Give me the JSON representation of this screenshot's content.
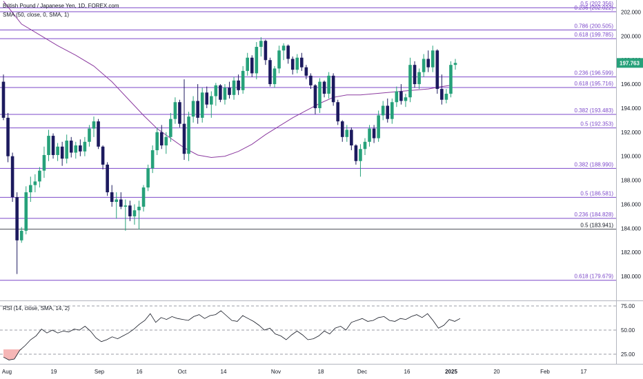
{
  "chart_data": {
    "type": "candlestick",
    "title": "British Pound / Japanese Yen, 1D, FOREX.com",
    "indicator_sma": "SMA (50, close, 0, SMA, 1)",
    "indicator_rsi": "RSI (14, close, SMA, 14, 2)",
    "last_price": "197.763",
    "colors": {
      "up": "#26a17a",
      "down": "#1c1a5e",
      "sma": "#8b3a9f",
      "rsi": "#131722",
      "fib": "#7b47c9",
      "last_price_bg": "#26a17a",
      "oversold_fill": "#f5b6b6"
    },
    "price_axis": {
      "min": 178,
      "max": 203,
      "ticks": [
        "202.000",
        "200.000",
        "198.000",
        "196.000",
        "194.000",
        "192.000",
        "190.000",
        "188.000",
        "186.000",
        "184.000",
        "182.000",
        "180.000"
      ]
    },
    "time_axis": {
      "labels": [
        "Aug",
        "19",
        "Sep",
        "16",
        "Oct",
        "14",
        "Nov",
        "18",
        "Dec",
        "16",
        "2025",
        "20",
        "Feb",
        "17"
      ]
    },
    "levels": [
      {
        "label": "0.5 (202.356)",
        "value": 202.356
      },
      {
        "label": "0.236 (202.022)",
        "value": 202.022
      },
      {
        "label": "0.786 (200.505)",
        "value": 200.505
      },
      {
        "label": "0.618 (199.785)",
        "value": 199.785
      },
      {
        "label": "0.236 (196.599)",
        "value": 196.599
      },
      {
        "label": "0.618 (195.716)",
        "value": 195.716
      },
      {
        "label": "0.382 (193.483)",
        "value": 193.483
      },
      {
        "label": "0.5 (192.353)",
        "value": 192.353
      },
      {
        "label": "0.382 (188.990)",
        "value": 188.99
      },
      {
        "label": "0.5 (186.581)",
        "value": 186.581
      },
      {
        "label": "0.236 (184.828)",
        "value": 184.828
      },
      {
        "label": "0.5 (183.941)",
        "value": 183.941
      },
      {
        "label": "0.618 (179.679)",
        "value": 179.679
      }
    ],
    "rsi_axis": {
      "ticks": [
        "75.00",
        "50.00",
        "25.00"
      ],
      "min": 15,
      "max": 80
    },
    "candles": [
      [
        196.2,
        196.8,
        193.0,
        193.2
      ],
      [
        193.2,
        193.6,
        189.5,
        190.0
      ],
      [
        190.0,
        190.3,
        186.2,
        186.6
      ],
      [
        186.6,
        187.0,
        180.2,
        183.0
      ],
      [
        183.0,
        184.1,
        182.8,
        183.8
      ],
      [
        183.8,
        187.5,
        183.5,
        187.0
      ],
      [
        187.0,
        188.3,
        186.2,
        187.6
      ],
      [
        187.6,
        188.5,
        187.0,
        187.9
      ],
      [
        187.9,
        189.1,
        187.4,
        188.8
      ],
      [
        188.8,
        190.8,
        188.2,
        190.1
      ],
      [
        190.1,
        192.2,
        189.6,
        191.7
      ],
      [
        191.7,
        191.9,
        189.8,
        190.1
      ],
      [
        190.1,
        191.1,
        189.6,
        190.8
      ],
      [
        190.8,
        191.2,
        189.2,
        189.8
      ],
      [
        189.8,
        191.8,
        189.4,
        191.3
      ],
      [
        191.3,
        191.6,
        189.9,
        190.3
      ],
      [
        190.3,
        191.2,
        189.8,
        190.9
      ],
      [
        190.9,
        191.4,
        190.0,
        190.4
      ],
      [
        190.4,
        191.6,
        190.0,
        191.2
      ],
      [
        191.2,
        192.6,
        190.8,
        192.3
      ],
      [
        192.3,
        193.3,
        191.6,
        192.9
      ],
      [
        192.9,
        193.1,
        190.6,
        190.8
      ],
      [
        190.8,
        190.9,
        188.9,
        189.3
      ],
      [
        189.3,
        189.5,
        186.7,
        187.0
      ],
      [
        187.0,
        187.6,
        185.8,
        186.2
      ],
      [
        186.2,
        187.0,
        184.8,
        186.4
      ],
      [
        186.4,
        187.0,
        185.6,
        185.8
      ],
      [
        185.8,
        186.4,
        183.8,
        185.9
      ],
      [
        185.9,
        186.3,
        184.6,
        185.0
      ],
      [
        185.0,
        186.0,
        184.3,
        185.5
      ],
      [
        185.5,
        186.3,
        183.9,
        185.8
      ],
      [
        185.8,
        187.6,
        185.4,
        187.4
      ],
      [
        187.4,
        189.3,
        187.1,
        189.0
      ],
      [
        189.0,
        190.9,
        188.6,
        190.5
      ],
      [
        190.5,
        192.4,
        190.1,
        192.0
      ],
      [
        192.0,
        192.6,
        190.6,
        190.9
      ],
      [
        190.9,
        192.0,
        190.2,
        191.6
      ],
      [
        191.6,
        193.6,
        191.2,
        193.1
      ],
      [
        193.1,
        194.9,
        192.7,
        194.5
      ],
      [
        194.5,
        194.7,
        192.4,
        192.7
      ],
      [
        192.7,
        196.4,
        189.7,
        190.2
      ],
      [
        190.2,
        193.7,
        189.6,
        193.3
      ],
      [
        193.3,
        195.0,
        192.8,
        194.6
      ],
      [
        194.6,
        196.0,
        192.7,
        193.2
      ],
      [
        193.2,
        195.7,
        192.8,
        195.3
      ],
      [
        195.3,
        195.8,
        194.0,
        194.3
      ],
      [
        194.3,
        195.4,
        193.2,
        195.0
      ],
      [
        195.0,
        196.1,
        194.2,
        195.9
      ],
      [
        195.9,
        196.0,
        194.5,
        194.7
      ],
      [
        194.7,
        196.0,
        194.3,
        195.7
      ],
      [
        195.7,
        196.2,
        194.8,
        195.1
      ],
      [
        195.1,
        196.6,
        194.7,
        196.3
      ],
      [
        196.3,
        196.8,
        195.1,
        195.5
      ],
      [
        195.5,
        197.5,
        195.2,
        197.1
      ],
      [
        197.1,
        198.6,
        196.7,
        198.2
      ],
      [
        198.2,
        198.4,
        196.6,
        196.9
      ],
      [
        196.9,
        199.5,
        196.4,
        199.1
      ],
      [
        199.1,
        199.9,
        198.3,
        199.6
      ],
      [
        199.6,
        199.7,
        197.6,
        198.0
      ],
      [
        198.0,
        198.2,
        195.8,
        196.0
      ],
      [
        196.0,
        197.5,
        195.7,
        197.3
      ],
      [
        197.3,
        199.2,
        196.9,
        198.8
      ],
      [
        198.8,
        199.4,
        198.0,
        199.2
      ],
      [
        199.2,
        199.3,
        197.7,
        198.1
      ],
      [
        198.1,
        198.3,
        196.8,
        197.2
      ],
      [
        197.2,
        198.5,
        196.9,
        198.2
      ],
      [
        198.2,
        198.6,
        197.1,
        197.4
      ],
      [
        197.4,
        197.6,
        196.4,
        196.7
      ],
      [
        196.7,
        196.9,
        195.6,
        195.9
      ],
      [
        195.9,
        196.0,
        193.5,
        194.0
      ],
      [
        194.0,
        196.5,
        193.6,
        196.2
      ],
      [
        196.2,
        196.3,
        194.9,
        195.2
      ],
      [
        195.2,
        197.0,
        194.8,
        196.7
      ],
      [
        196.7,
        196.9,
        194.2,
        194.5
      ],
      [
        194.5,
        194.7,
        192.6,
        192.9
      ],
      [
        192.9,
        193.0,
        191.2,
        191.6
      ],
      [
        191.6,
        192.6,
        191.2,
        192.2
      ],
      [
        192.2,
        192.4,
        190.5,
        190.9
      ],
      [
        190.9,
        191.0,
        189.3,
        189.6
      ],
      [
        189.6,
        191.0,
        188.3,
        190.6
      ],
      [
        190.6,
        191.5,
        190.1,
        191.2
      ],
      [
        191.2,
        192.6,
        190.8,
        192.3
      ],
      [
        192.3,
        192.6,
        191.1,
        191.5
      ],
      [
        191.5,
        193.8,
        191.2,
        193.4
      ],
      [
        193.4,
        194.6,
        193.0,
        194.2
      ],
      [
        194.2,
        194.8,
        192.8,
        193.1
      ],
      [
        193.1,
        194.8,
        192.7,
        194.5
      ],
      [
        194.5,
        195.8,
        194.1,
        195.4
      ],
      [
        195.4,
        196.0,
        194.3,
        194.6
      ],
      [
        194.6,
        195.2,
        194.1,
        194.9
      ],
      [
        194.9,
        198.2,
        194.5,
        197.6
      ],
      [
        197.6,
        197.9,
        195.7,
        196.0
      ],
      [
        196.0,
        197.3,
        195.6,
        197.0
      ],
      [
        197.0,
        198.5,
        196.6,
        198.1
      ],
      [
        198.1,
        198.8,
        197.0,
        197.4
      ],
      [
        197.4,
        199.2,
        197.0,
        198.8
      ],
      [
        198.8,
        198.9,
        195.2,
        195.6
      ],
      [
        195.6,
        196.8,
        194.3,
        194.7
      ],
      [
        194.7,
        195.6,
        194.4,
        195.2
      ],
      [
        195.2,
        197.9,
        194.9,
        197.6
      ],
      [
        197.6,
        198.1,
        197.2,
        197.763
      ]
    ],
    "sma": [
      [
        0,
        202.9
      ],
      [
        4,
        201.0
      ],
      [
        8,
        200.1
      ],
      [
        12,
        199.2
      ],
      [
        16,
        198.4
      ],
      [
        20,
        197.5
      ],
      [
        24,
        196.2
      ],
      [
        28,
        194.6
      ],
      [
        31,
        193.4
      ],
      [
        34,
        192.3
      ],
      [
        37,
        191.5
      ],
      [
        40,
        190.7
      ],
      [
        43,
        190.1
      ],
      [
        46,
        189.9
      ],
      [
        49,
        190.0
      ],
      [
        52,
        190.4
      ],
      [
        55,
        191.0
      ],
      [
        58,
        191.8
      ],
      [
        61,
        192.5
      ],
      [
        64,
        193.2
      ],
      [
        67,
        193.8
      ],
      [
        70,
        194.4
      ],
      [
        73,
        194.9
      ],
      [
        76,
        195.1
      ],
      [
        79,
        195.1
      ],
      [
        82,
        195.2
      ],
      [
        85,
        195.3
      ],
      [
        88,
        195.4
      ],
      [
        91,
        195.5
      ],
      [
        94,
        195.6
      ],
      [
        97,
        195.8
      ],
      [
        99,
        195.9
      ]
    ],
    "rsi": [
      [
        0,
        22
      ],
      [
        2,
        19
      ],
      [
        4,
        20
      ],
      [
        6,
        29
      ],
      [
        8,
        34
      ],
      [
        10,
        40
      ],
      [
        12,
        44
      ],
      [
        14,
        51
      ],
      [
        16,
        47
      ],
      [
        18,
        50
      ],
      [
        20,
        47
      ],
      [
        22,
        49
      ],
      [
        24,
        48
      ],
      [
        26,
        51
      ],
      [
        28,
        50
      ],
      [
        30,
        54
      ],
      [
        32,
        49
      ],
      [
        34,
        42
      ],
      [
        36,
        38
      ],
      [
        38,
        40
      ],
      [
        40,
        43
      ],
      [
        42,
        41
      ],
      [
        44,
        44
      ],
      [
        46,
        47
      ],
      [
        48,
        51
      ],
      [
        50,
        56
      ],
      [
        52,
        60
      ],
      [
        54,
        67
      ],
      [
        56,
        58
      ],
      [
        58,
        63
      ],
      [
        60,
        61
      ],
      [
        62,
        64
      ],
      [
        64,
        62
      ],
      [
        66,
        61
      ],
      [
        68,
        60
      ],
      [
        70,
        64
      ],
      [
        72,
        66
      ],
      [
        74,
        62
      ],
      [
        76,
        65
      ],
      [
        78,
        66
      ],
      [
        80,
        70
      ],
      [
        82,
        65
      ],
      [
        84,
        60
      ],
      [
        86,
        59
      ],
      [
        88,
        65
      ],
      [
        90,
        62
      ],
      [
        92,
        59
      ],
      [
        94,
        55
      ],
      [
        96,
        50
      ],
      [
        98,
        52
      ],
      [
        100,
        46
      ],
      [
        102,
        44
      ],
      [
        104,
        40
      ],
      [
        106,
        45
      ],
      [
        108,
        49
      ],
      [
        110,
        45
      ],
      [
        112,
        40
      ],
      [
        114,
        41
      ],
      [
        116,
        44
      ],
      [
        118,
        49
      ],
      [
        120,
        46
      ],
      [
        122,
        52
      ],
      [
        124,
        54
      ],
      [
        126,
        50
      ],
      [
        128,
        58
      ],
      [
        130,
        60
      ],
      [
        132,
        62
      ],
      [
        134,
        59
      ],
      [
        136,
        60
      ],
      [
        138,
        63
      ],
      [
        140,
        64
      ],
      [
        142,
        60
      ],
      [
        144,
        59
      ],
      [
        146,
        62
      ],
      [
        148,
        61
      ],
      [
        150,
        64
      ],
      [
        152,
        66
      ],
      [
        154,
        63
      ],
      [
        156,
        67
      ],
      [
        158,
        60
      ],
      [
        160,
        52
      ],
      [
        162,
        55
      ],
      [
        164,
        61
      ],
      [
        166,
        59
      ],
      [
        168,
        62
      ]
    ]
  }
}
